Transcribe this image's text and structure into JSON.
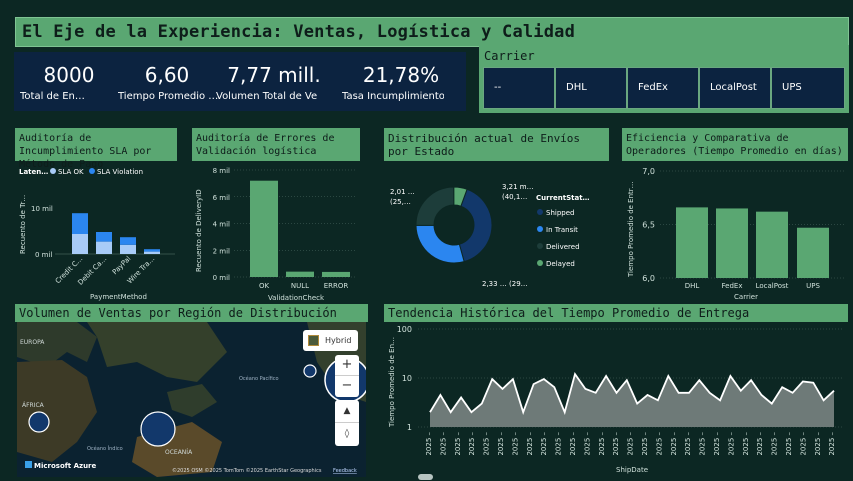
{
  "title": "El Eje de la Experiencia: Ventas, Logística y Calidad",
  "kpis": [
    {
      "value": "8000",
      "label": "Total de En…"
    },
    {
      "value": "6,60",
      "label": "Tiempo Promedio …"
    },
    {
      "value": "7,77 mill.",
      "label": "Volumen Total de Ve…"
    },
    {
      "value": "21,78%",
      "label": "Tasa Incumplimiento…"
    }
  ],
  "carrier": {
    "header": "Carrier",
    "options": [
      "--",
      "DHL",
      "FedEx",
      "LocalPost",
      "UPS"
    ]
  },
  "sla_chart": {
    "header": "Auditoría de Incumplimiento SLA por Método de Pago",
    "legend_title": "Laten…",
    "legend": [
      "SLA OK",
      "SLA Violation"
    ],
    "ylabel": "Recuento de Tr…",
    "xlabel": "PaymentMethod",
    "yticks": [
      "10 mil",
      "0 mil"
    ],
    "colors": {
      "ok": "#a8cbf7",
      "violation": "#2b86f0"
    }
  },
  "validation_chart": {
    "header": "Auditoría de Errores de Validación logística",
    "ylabel": "Recuento de DeliveryID",
    "xlabel": "ValidationCheck",
    "yticks": [
      "8 mil",
      "6 mil",
      "4 mil",
      "2 mil",
      "0 mil"
    ],
    "bar_color": "#5aa772"
  },
  "status_chart": {
    "header": "Distribución actual de Envíos por Estado",
    "legend_title": "CurrentStat…",
    "labels": {
      "top": "3,21 m…",
      "top2": "(40,1…",
      "left": "2,01 …",
      "left2": "(25,…",
      "bottom": "2,33 … (29…"
    },
    "colors": {
      "shipped": "#12386b",
      "in_transit": "#2b86f0",
      "delivered": "#1d3d3a",
      "delayed": "#5aa772"
    }
  },
  "carrier_chart": {
    "header": "Eficiencia y Comparativa de Operadores (Tiempo Promedio en días)",
    "ylabel": "Tiempo Promedio de Entr…",
    "xlabel": "Carrier",
    "yticks": [
      "7,0",
      "6,5",
      "6,0"
    ],
    "bar_color": "#5aa772"
  },
  "map": {
    "header": "Volumen de Ventas por Región de Distribución",
    "style_button": "Hybrid",
    "zoom_in": "+",
    "zoom_out": "−",
    "brand": "Microsoft Azure",
    "attribution": "©2025 OSM  ©2025 TomTom  ©2025 EarthStar Geographics",
    "feedback": "Feedback",
    "labels": [
      "EUROPA",
      "ÁFRICA",
      "Océano Índico",
      "OCEANÍA",
      "Océano Pacífico"
    ]
  },
  "trend_chart": {
    "header": "Tendencia Histórica del Tiempo Promedio de Entrega",
    "ylabel": "Tiempo Promedio de En…",
    "xlabel": "ShipDate",
    "yticks": [
      "100",
      "10",
      "1"
    ],
    "xtick": "2025 –"
  },
  "chart_data": [
    {
      "type": "bar",
      "title": "Auditoría de Incumplimiento SLA por Método de Pago",
      "categories": [
        "Credit C…",
        "Debit Ca…",
        "PayPal",
        "Wire Tra…"
      ],
      "series": [
        {
          "name": "SLA OK",
          "values": [
            5000,
            3100,
            2300,
            600
          ]
        },
        {
          "name": "SLA Violation",
          "values": [
            5200,
            2400,
            1900,
            600
          ]
        }
      ],
      "xlabel": "PaymentMethod",
      "ylabel": "Recuento de Tr…",
      "ylim": [
        0,
        14000
      ]
    },
    {
      "type": "bar",
      "title": "Auditoría de Errores de Validación logística",
      "categories": [
        "OK",
        "NULL",
        "ERROR"
      ],
      "values": [
        7200,
        400,
        380
      ],
      "xlabel": "ValidationCheck",
      "ylabel": "Recuento de DeliveryID",
      "ylim": [
        0,
        8000
      ]
    },
    {
      "type": "pie",
      "title": "Distribución actual de Envíos por Estado",
      "categories": [
        "Shipped",
        "In Transit",
        "Delivered",
        "Delayed"
      ],
      "values": [
        3.21,
        2.33,
        2.01,
        0.45
      ]
    },
    {
      "type": "bar",
      "title": "Eficiencia y Comparativa de Operadores (Tiempo Promedio en días)",
      "categories": [
        "DHL",
        "FedEx",
        "LocalPost",
        "UPS"
      ],
      "values": [
        6.66,
        6.65,
        6.62,
        6.47
      ],
      "xlabel": "Carrier",
      "ylabel": "Tiempo Promedio de Entr…",
      "ylim": [
        6.0,
        7.0
      ]
    },
    {
      "type": "area",
      "title": "Tendencia Histórica del Tiempo Promedio de Entrega",
      "yscale": "log",
      "values": [
        2,
        4.5,
        2,
        4,
        2,
        3,
        9.5,
        6,
        9.5,
        2,
        7.5,
        9.5,
        6.5,
        2,
        12,
        6,
        5,
        11,
        5,
        9,
        3,
        4.5,
        3.5,
        11,
        5,
        5,
        9,
        5,
        3.5,
        11,
        5.5,
        9,
        4.5,
        3,
        6.5,
        5,
        8.5,
        8,
        3.5,
        5.5
      ],
      "xlabel": "ShipDate",
      "ylabel": "Tiempo Promedio de En…",
      "ylim": [
        1,
        100
      ]
    }
  ]
}
